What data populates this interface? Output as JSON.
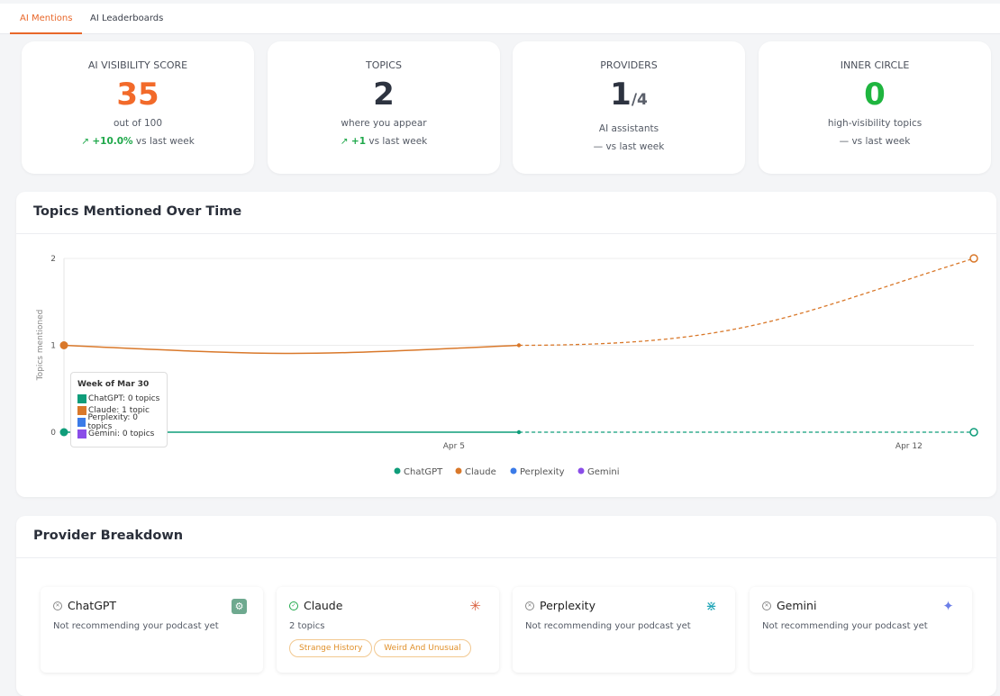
{
  "tabs": [
    {
      "label": "AI Mentions",
      "active": true
    },
    {
      "label": "AI Leaderboards",
      "active": false
    }
  ],
  "stats": [
    {
      "label": "AI VISIBILITY SCORE",
      "value": "35",
      "color": "#f26a2a",
      "sub": "out of 100",
      "change": "+10.0%",
      "change_suffix": " vs last week",
      "trend": "up"
    },
    {
      "label": "TOPICS",
      "value": "2",
      "color": "#2d3340",
      "sub": "where you appear",
      "change": "+1",
      "change_suffix": " vs last week",
      "trend": "up"
    },
    {
      "label": "PROVIDERS",
      "value": "1",
      "value_denominator": "/4",
      "color": "#2d3340",
      "sub": "AI assistants",
      "change": "—",
      "change_suffix": " vs last week",
      "trend": "flat"
    },
    {
      "label": "INNER CIRCLE",
      "value": "0",
      "color": "#1fb53f",
      "sub": "high-visibility topics",
      "change": "—",
      "change_suffix": " vs last week",
      "trend": "flat"
    }
  ],
  "chart_panel": {
    "title": "Topics Mentioned Over Time"
  },
  "chart_data": {
    "type": "line",
    "ylabel": "Topics mentioned",
    "ylim": [
      0,
      2
    ],
    "yticks": [
      "0",
      "1",
      "2"
    ],
    "xticks": [
      "Apr 5",
      "Apr 12"
    ],
    "x": [
      "2025-03-30",
      "2025-04-06",
      "2025-04-13"
    ],
    "series": [
      {
        "name": "ChatGPT",
        "color": "#0f9d7a",
        "values": [
          0,
          0,
          0
        ]
      },
      {
        "name": "Claude",
        "color": "#d9782a",
        "values": [
          1,
          1,
          2
        ]
      },
      {
        "name": "Perplexity",
        "color": "#3b7be8",
        "values": [
          null,
          null,
          null
        ]
      },
      {
        "name": "Gemini",
        "color": "#8a4de8",
        "values": [
          null,
          null,
          null
        ]
      }
    ],
    "last_segment_dashed": true,
    "legend": "bottom",
    "tooltip": {
      "title": "Week of Mar 30",
      "rows": [
        "ChatGPT: 0 topics",
        "Claude: 1 topic",
        "Perplexity: 0 topics",
        "Gemini: 0 topics"
      ]
    }
  },
  "providers_panel": {
    "title": "Provider Breakdown",
    "providers": [
      {
        "name": "ChatGPT",
        "status": "x-circle-icon",
        "description": "Not recommending your podcast yet",
        "topics": []
      },
      {
        "name": "Claude",
        "status": "check-circle-icon",
        "description": "2 topics",
        "topics": [
          "Strange History",
          "Weird And Unusual"
        ]
      },
      {
        "name": "Perplexity",
        "status": "x-circle-icon",
        "description": "Not recommending your podcast yet",
        "topics": []
      },
      {
        "name": "Gemini",
        "status": "x-circle-icon",
        "description": "Not recommending your podcast yet",
        "topics": []
      }
    ]
  }
}
